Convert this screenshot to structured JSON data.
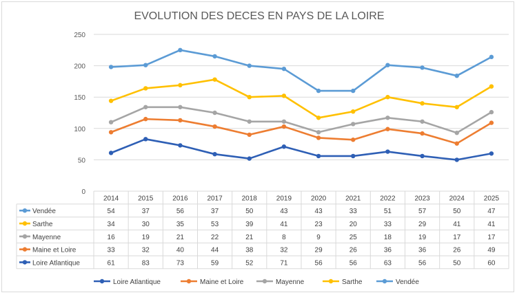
{
  "chart_data": {
    "type": "line",
    "title": "EVOLUTION DES DECES EN PAYS DE LA LOIRE",
    "categories": [
      "2014",
      "2015",
      "2016",
      "2017",
      "2018",
      "2019",
      "2020",
      "2021",
      "2022",
      "2023",
      "2024",
      "2025"
    ],
    "ylim": [
      0,
      250
    ],
    "yticks": [
      0,
      50,
      100,
      150,
      200,
      250
    ],
    "stacked": true,
    "grid": true,
    "legend_position": "bottom",
    "series": [
      {
        "name": "Loire Atlantique",
        "color": "#2e5fb5",
        "values": [
          61,
          83,
          73,
          59,
          52,
          71,
          56,
          56,
          63,
          56,
          50,
          60
        ]
      },
      {
        "name": "Maine et Loire",
        "color": "#ed7d31",
        "values": [
          33,
          32,
          40,
          44,
          38,
          32,
          29,
          26,
          36,
          36,
          26,
          49
        ]
      },
      {
        "name": "Mayenne",
        "color": "#a5a5a5",
        "values": [
          16,
          19,
          21,
          22,
          21,
          8,
          9,
          25,
          18,
          19,
          17,
          17
        ]
      },
      {
        "name": "Sarthe",
        "color": "#ffc000",
        "values": [
          34,
          30,
          35,
          53,
          39,
          41,
          23,
          20,
          33,
          29,
          41,
          41
        ]
      },
      {
        "name": "Vendée",
        "color": "#5b9bd5",
        "values": [
          54,
          37,
          56,
          37,
          50,
          43,
          43,
          33,
          51,
          57,
          50,
          47
        ]
      }
    ],
    "table_row_order": [
      "Vendée",
      "Sarthe",
      "Mayenne",
      "Maine et Loire",
      "Loire Atlantique"
    ]
  }
}
